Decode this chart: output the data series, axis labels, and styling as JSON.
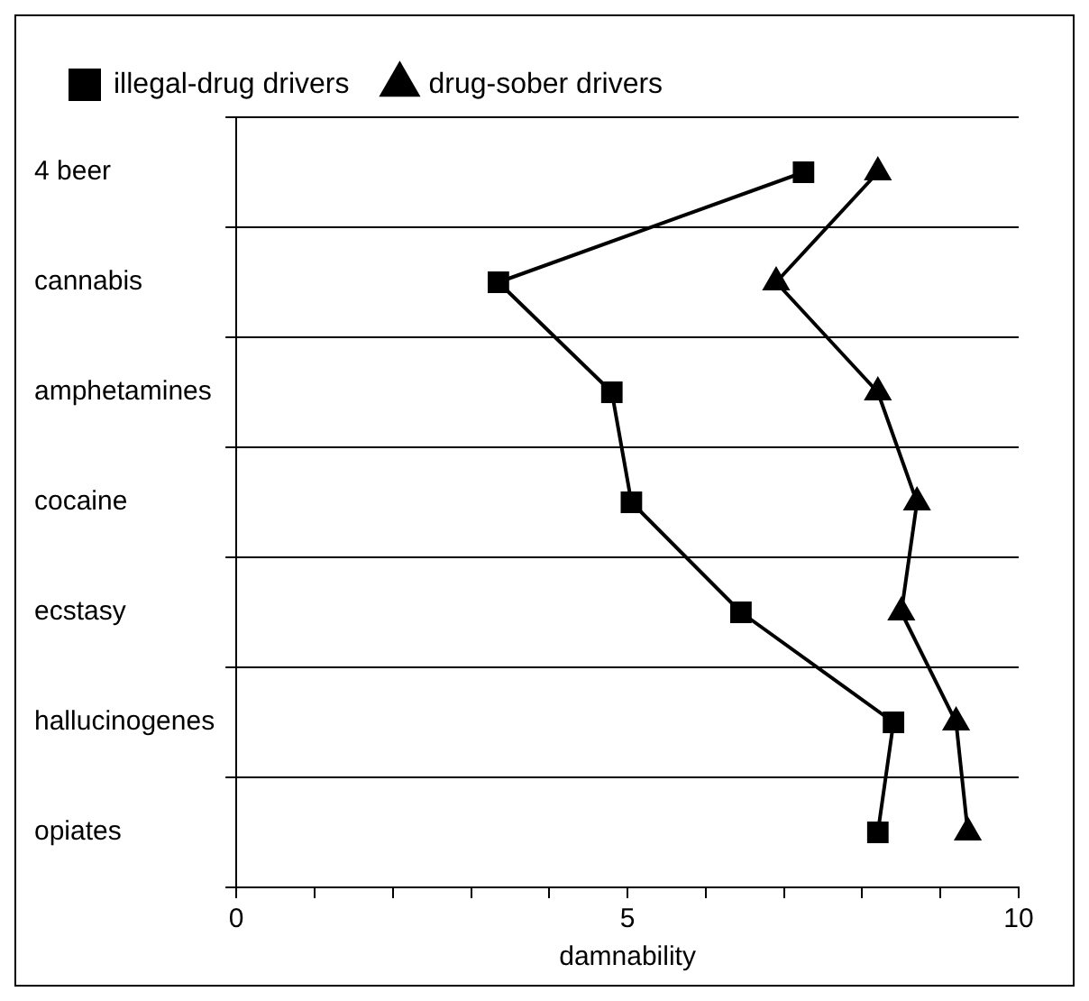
{
  "chart_data": {
    "type": "line",
    "orientation": "horizontal",
    "xlabel": "damnability",
    "categories": [
      "4 beer",
      "cannabis",
      "amphetamines",
      "cocaine",
      "ecstasy",
      "hallucinogenes",
      "opiates"
    ],
    "series": [
      {
        "name": "illegal-drug drivers",
        "color": "#000000",
        "marker": "square",
        "values": [
          7.25,
          3.35,
          4.8,
          5.05,
          6.45,
          8.4,
          8.2
        ]
      },
      {
        "name": "drug-sober drivers",
        "color": "#000000",
        "marker": "triangle",
        "values": [
          8.2,
          6.9,
          8.2,
          8.7,
          8.5,
          9.2,
          9.35
        ]
      }
    ],
    "xlim": [
      0,
      10
    ],
    "xticks": [
      0,
      {
        "value": 1,
        "label": null
      },
      {
        "value": 2,
        "label": null
      },
      {
        "value": 3,
        "label": null
      },
      {
        "value": 4,
        "label": null
      },
      5,
      {
        "value": 6,
        "label": null
      },
      {
        "value": 7,
        "label": null
      },
      {
        "value": 8,
        "label": null
      },
      {
        "value": 9,
        "label": null
      },
      10
    ],
    "grid": "y",
    "legend": "top",
    "line_style": "solid"
  }
}
